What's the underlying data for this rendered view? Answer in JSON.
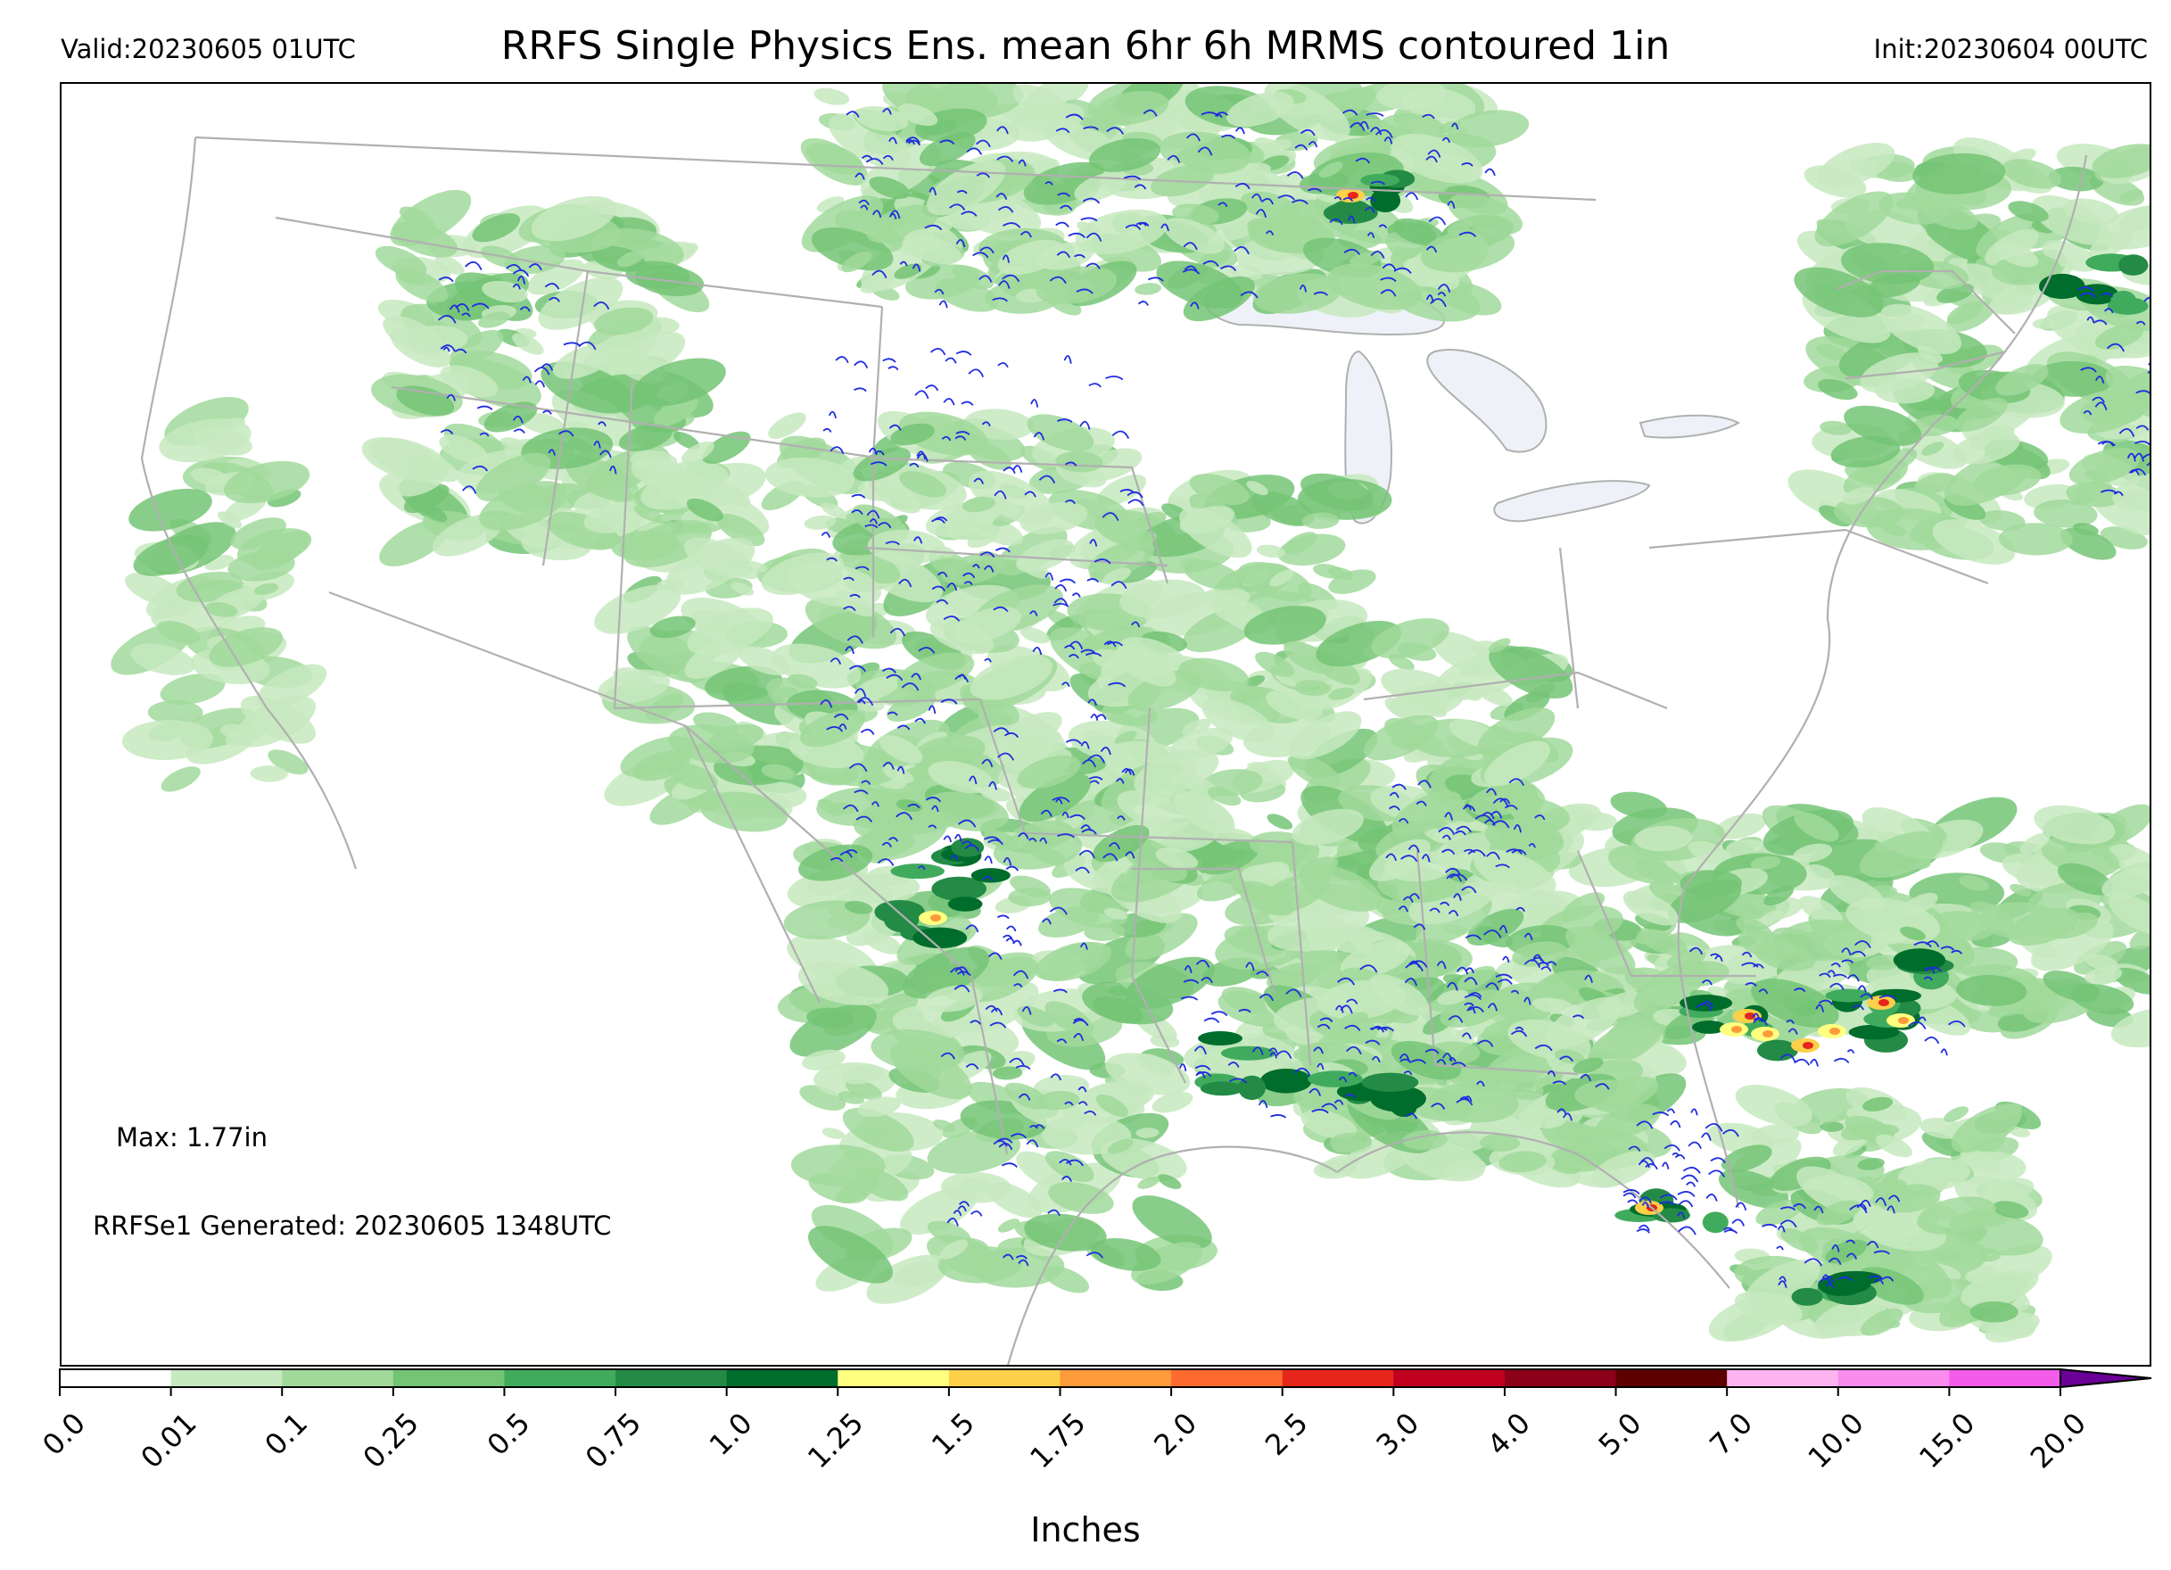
{
  "header": {
    "valid": "Valid:20230605 01UTC",
    "title": "RRFS Single Physics Ens. mean 6hr 6h MRMS contoured 1in",
    "init": "Init:20230604 00UTC"
  },
  "annotations": {
    "max": "Max: 1.77in",
    "generated": "RRFSe1 Generated: 20230605 1348UTC"
  },
  "colorbar": {
    "label": "Inches",
    "ticks": [
      "0.0",
      "0.01",
      "0.1",
      "0.25",
      "0.5",
      "0.75",
      "1.0",
      "1.25",
      "1.5",
      "1.75",
      "2.0",
      "2.5",
      "3.0",
      "4.0",
      "5.0",
      "7.0",
      "10.0",
      "15.0",
      "20.0"
    ],
    "colors": [
      "#ffffff",
      "#c7e9c0",
      "#a1d99b",
      "#74c476",
      "#41ab5d",
      "#238b45",
      "#006d2c",
      "#ffff80",
      "#fdd049",
      "#fd9a3a",
      "#fc6a2f",
      "#e6261a",
      "#c0001e",
      "#8c0019",
      "#5e0000",
      "#fbb4f0",
      "#f98ced",
      "#f35ce8",
      "#e41fe0",
      "#b10cd8",
      "#8a07c8"
    ],
    "extend_color": "#6a0096"
  },
  "map": {
    "precip_shades": [
      "#c7e9c0",
      "#a1d99b",
      "#74c476",
      "#41ab5d",
      "#238b45",
      "#006d2c"
    ],
    "high_colors": [
      "#ffff80",
      "#fdd049",
      "#fd9a3a",
      "#e6261a"
    ],
    "contour_color": "#1f2ce0",
    "boundary_color": "#b0b0b0",
    "lake_color": "#eef2f8"
  }
}
